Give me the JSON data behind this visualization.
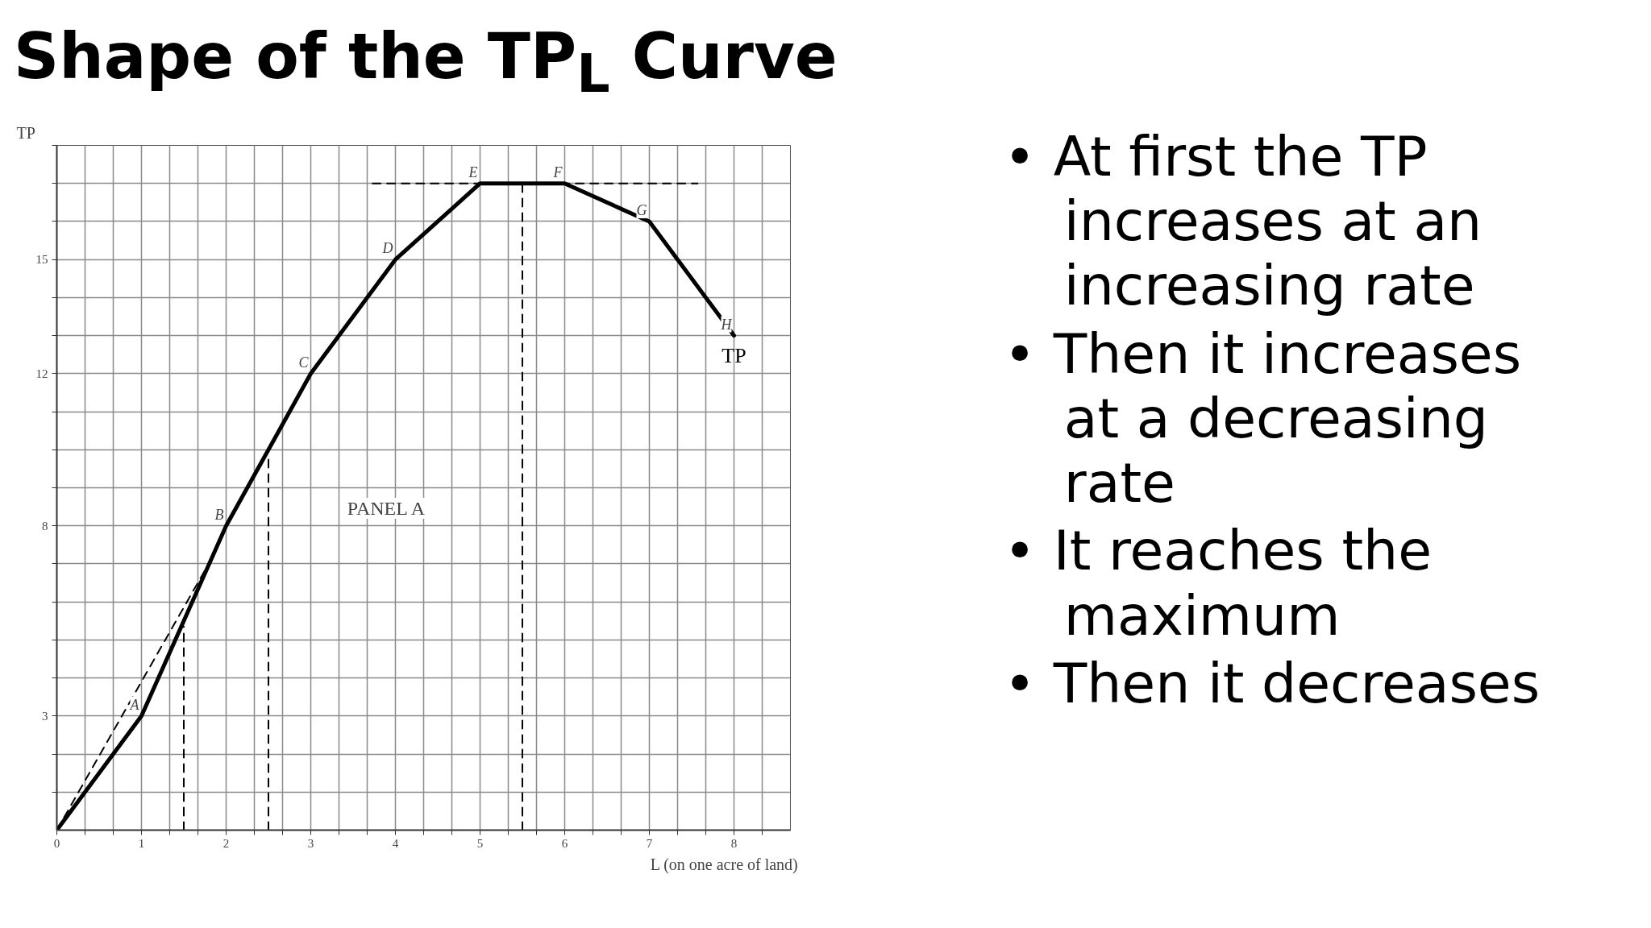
{
  "chart_data": {
    "type": "line",
    "title": "Shape of the TP$_{L}$ Curve",
    "xlabel": "L (on one acre of land)",
    "ylabel": "TP",
    "x": [
      0,
      1,
      2,
      3,
      4,
      5,
      6,
      7,
      8
    ],
    "series": [
      {
        "name": "TP",
        "color": "#000000",
        "values": [
          0,
          3,
          8,
          12,
          15,
          17,
          17,
          16,
          13
        ]
      },
      {
        "color": "#000000",
        "line_style": "dashed",
        "x": [
          0,
          1.87
        ],
        "values": [
          0,
          7.3
        ]
      },
      {
        "color": "#000000",
        "line_style": "dashed",
        "x": [
          1.5,
          1.5
        ],
        "values": [
          0,
          5.35
        ]
      },
      {
        "color": "#000000",
        "line_style": "dashed",
        "x": [
          2.5,
          2.5
        ],
        "values": [
          0,
          9.85
        ]
      },
      {
        "color": "#000000",
        "line_style": "dashed",
        "x": [
          5.5,
          5.5
        ],
        "values": [
          0,
          17
        ]
      },
      {
        "color": "#000000",
        "line_style": "dashed",
        "x": [
          3.73,
          7.57
        ],
        "values": [
          17,
          17
        ]
      }
    ],
    "xlim": [
      0,
      8.667
    ],
    "ylim": [
      0,
      18
    ],
    "xticks": [
      0,
      {
        "value": 0.333,
        "label": null
      },
      {
        "value": 0.667,
        "label": null
      },
      1,
      {
        "value": 1.333,
        "label": null
      },
      {
        "value": 1.667,
        "label": null
      },
      2,
      {
        "value": 2.333,
        "label": null
      },
      {
        "value": 2.667,
        "label": null
      },
      3,
      {
        "value": 3.333,
        "label": null
      },
      {
        "value": 3.667,
        "label": null
      },
      4,
      {
        "value": 4.333,
        "label": null
      },
      {
        "value": 4.667,
        "label": null
      },
      5,
      {
        "value": 5.333,
        "label": null
      },
      {
        "value": 5.667,
        "label": null
      },
      6,
      {
        "value": 6.333,
        "label": null
      },
      {
        "value": 6.667,
        "label": null
      },
      7,
      {
        "value": 7.333,
        "label": null
      },
      {
        "value": 7.667,
        "label": null
      },
      8,
      {
        "value": 8.333,
        "label": null
      }
    ],
    "yticks": [
      {
        "value": 1,
        "label": null
      },
      {
        "value": 2,
        "label": null
      },
      3,
      {
        "value": 4,
        "label": null
      },
      {
        "value": 5,
        "label": null
      },
      {
        "value": 6,
        "label": null
      },
      {
        "value": 7,
        "label": null
      },
      8,
      {
        "value": 9,
        "label": null
      },
      {
        "value": 10,
        "label": null
      },
      {
        "value": 11,
        "label": null
      },
      12,
      {
        "value": 13,
        "label": null
      },
      {
        "value": 14,
        "label": null
      },
      15,
      {
        "value": 16,
        "label": null
      },
      {
        "value": 17,
        "label": null
      },
      {
        "value": 18,
        "label": null
      }
    ],
    "grid": true,
    "marker": "none",
    "line_style": "solid",
    "legend": false,
    "annotations": [
      {
        "text": "A",
        "x": 1,
        "y": 3
      },
      {
        "text": "B",
        "x": 2,
        "y": 8
      },
      {
        "text": "C",
        "x": 3,
        "y": 12
      },
      {
        "text": "D",
        "x": 4,
        "y": 15
      },
      {
        "text": "E",
        "x": 5,
        "y": 17
      },
      {
        "text": "F",
        "x": 6,
        "y": 17
      },
      {
        "text": "G",
        "x": 7,
        "y": 16
      },
      {
        "text": "H",
        "x": 8,
        "y": 13
      },
      "PANEL A",
      "• At first the TP increases at an increasing rate",
      "• Then it increases at a decreasing rate",
      "• It reaches the maximum",
      "• Then it decreases"
    ]
  }
}
